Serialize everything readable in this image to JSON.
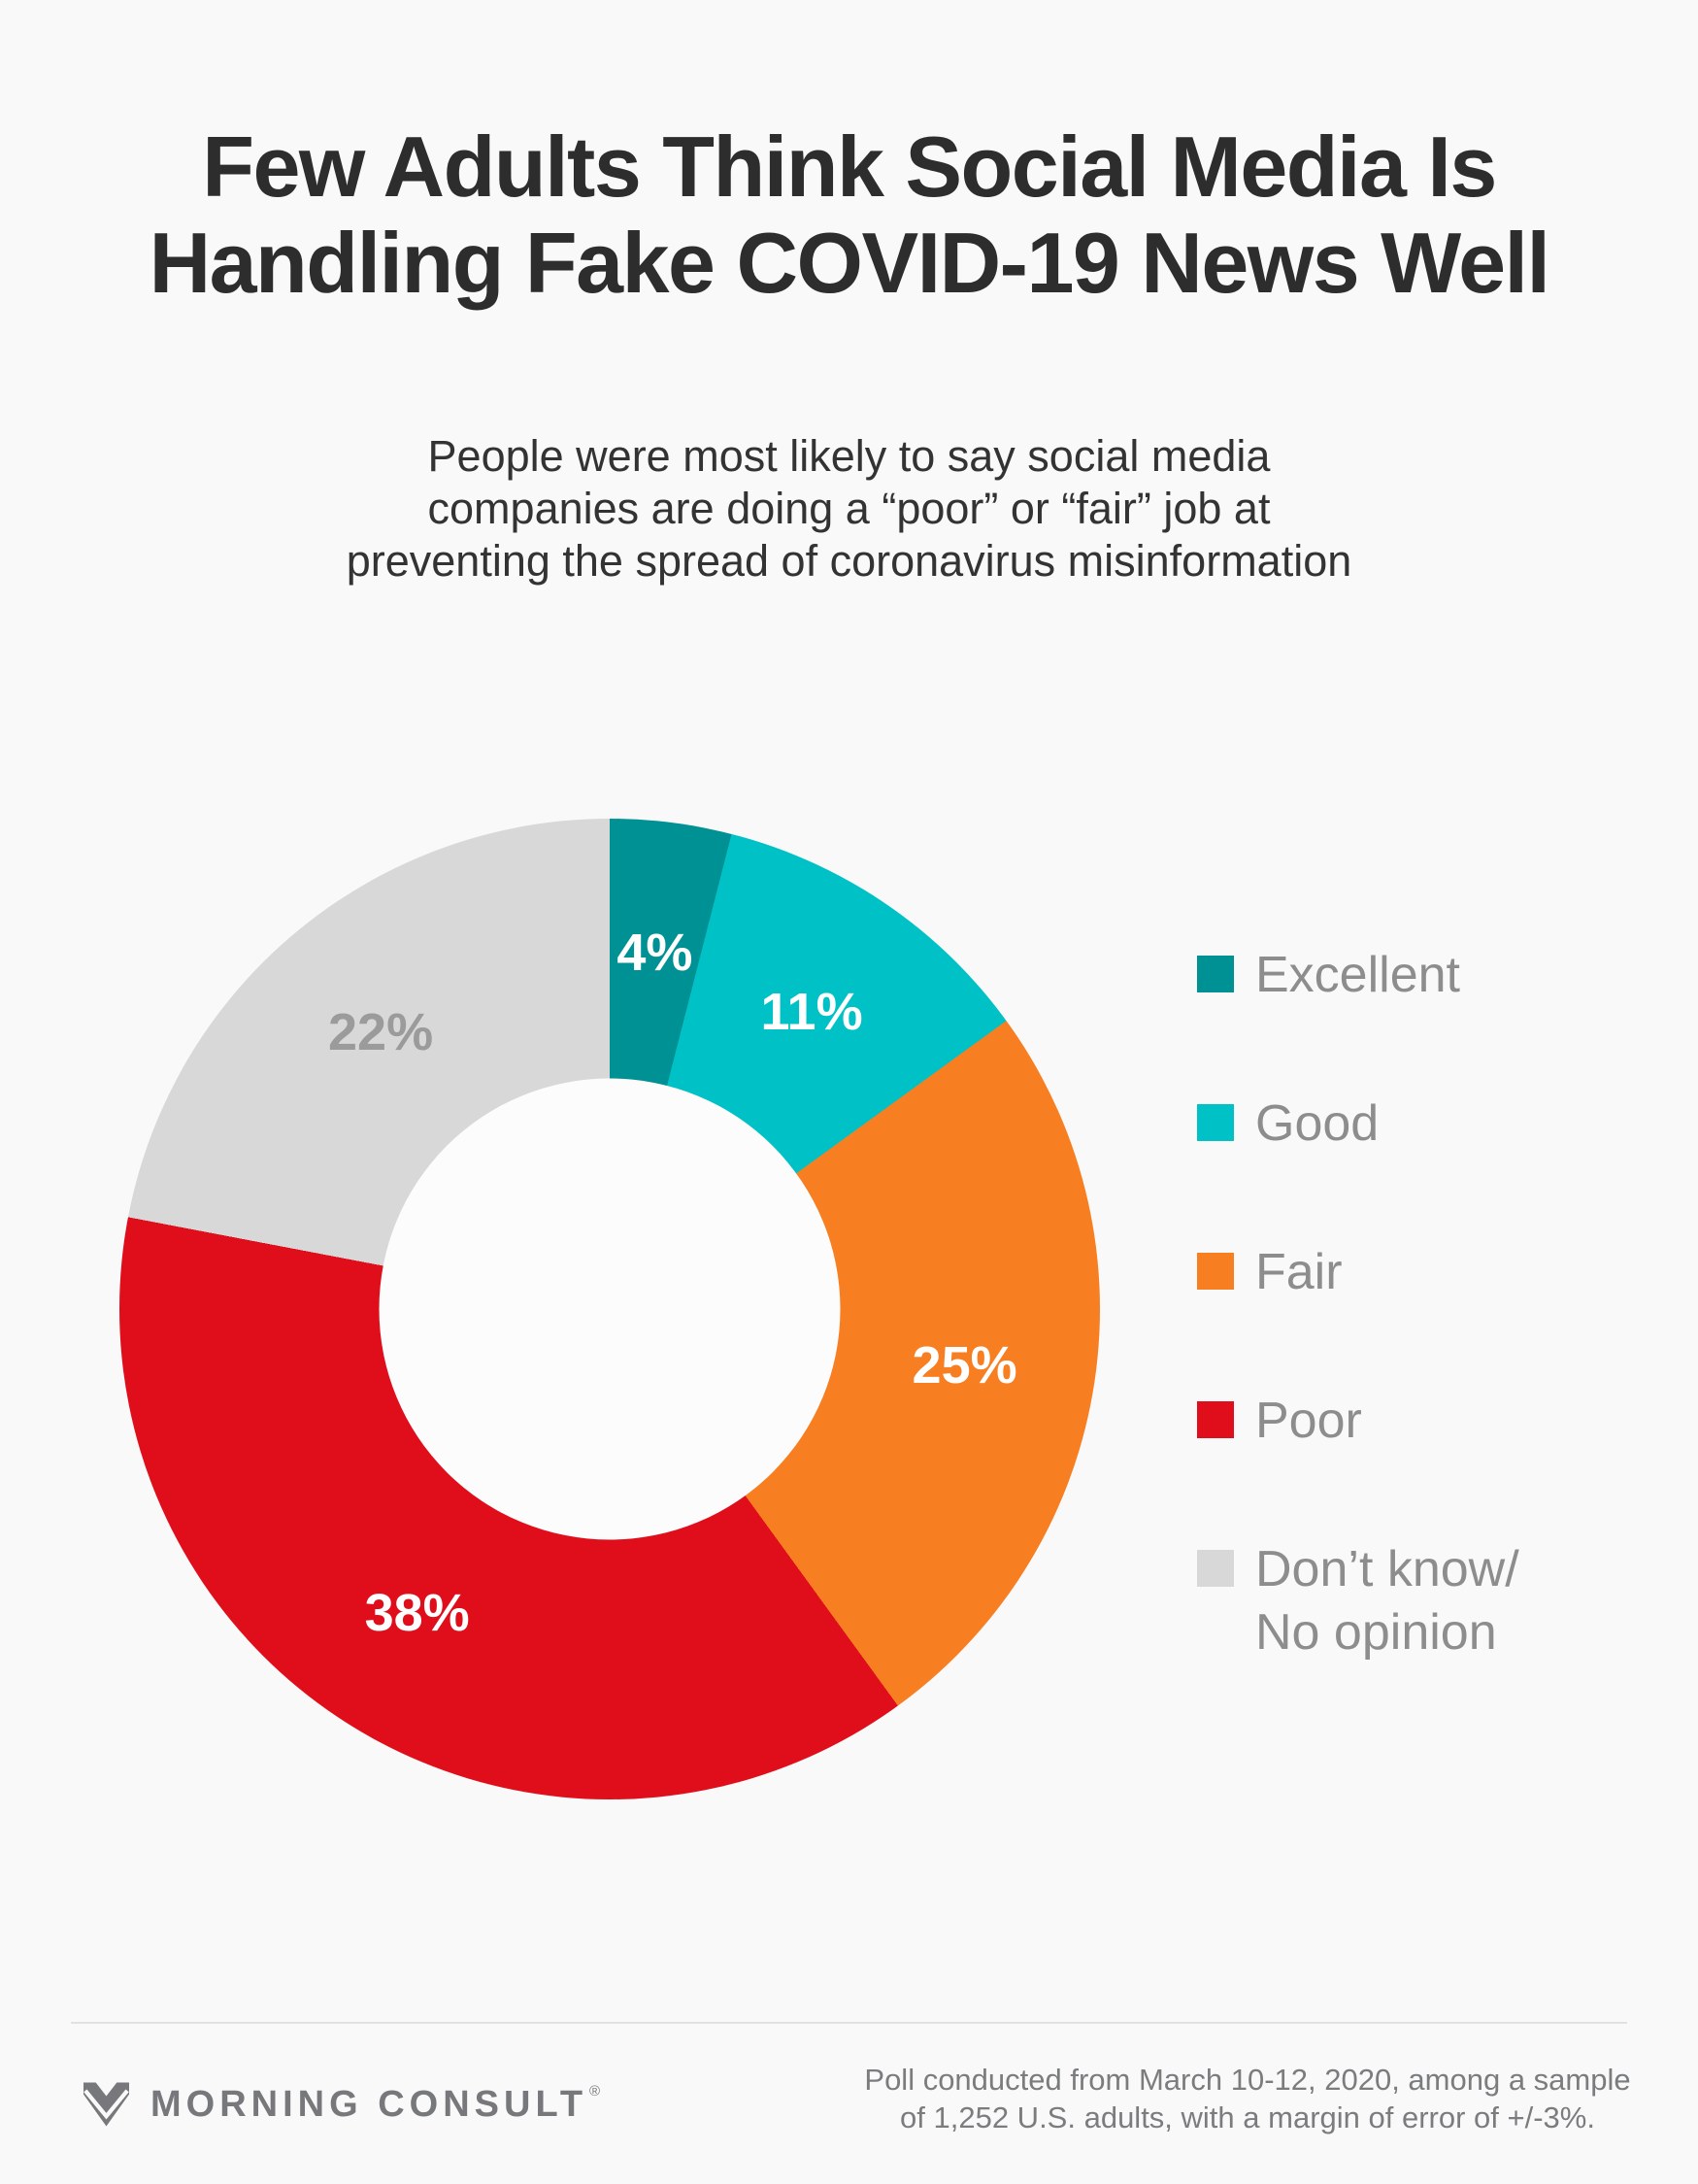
{
  "page": {
    "background": "#f9f9f9"
  },
  "header": {
    "title": "Few Adults Think Social Media Is\nHandling Fake COVID-19 News Well",
    "subtitle": "People were most likely to say social media\ncompanies are doing a “poor” or “fair” job at\npreventing the spread of coronavirus misinformation"
  },
  "chart_data": {
    "type": "pie",
    "variant": "donut",
    "title": "Few Adults Think Social Media Is Handling Fake COVID-19 News Well",
    "categories": [
      "Excellent",
      "Good",
      "Fair",
      "Poor",
      "Don’t know/\nNo opinion"
    ],
    "values": [
      4,
      11,
      25,
      38,
      22
    ],
    "colors": [
      "#009195",
      "#00C2C6",
      "#F87E22",
      "#E00E1B",
      "#D8D8D8"
    ],
    "data_labels": [
      "4%",
      "11%",
      "25%",
      "38%",
      "22%"
    ],
    "data_label_colors": [
      "#FFFFFF",
      "#FFFFFF",
      "#FFFFFF",
      "#FFFFFF",
      "#9B9B9B"
    ],
    "value_suffix": "%",
    "start_angle_deg": 0,
    "direction": "clockwise",
    "donut_hole_ratio": 0.47,
    "data_label_radius_ratio": 0.733,
    "legend_position": "right",
    "grid": false
  },
  "footer": {
    "brand_name": "MORNING CONSULT",
    "brand_registered_mark": "®",
    "source_text": "Poll conducted from March 10-12, 2020, among a sample\nof 1,252 U.S. adults, with a margin of error of +/-3%."
  }
}
